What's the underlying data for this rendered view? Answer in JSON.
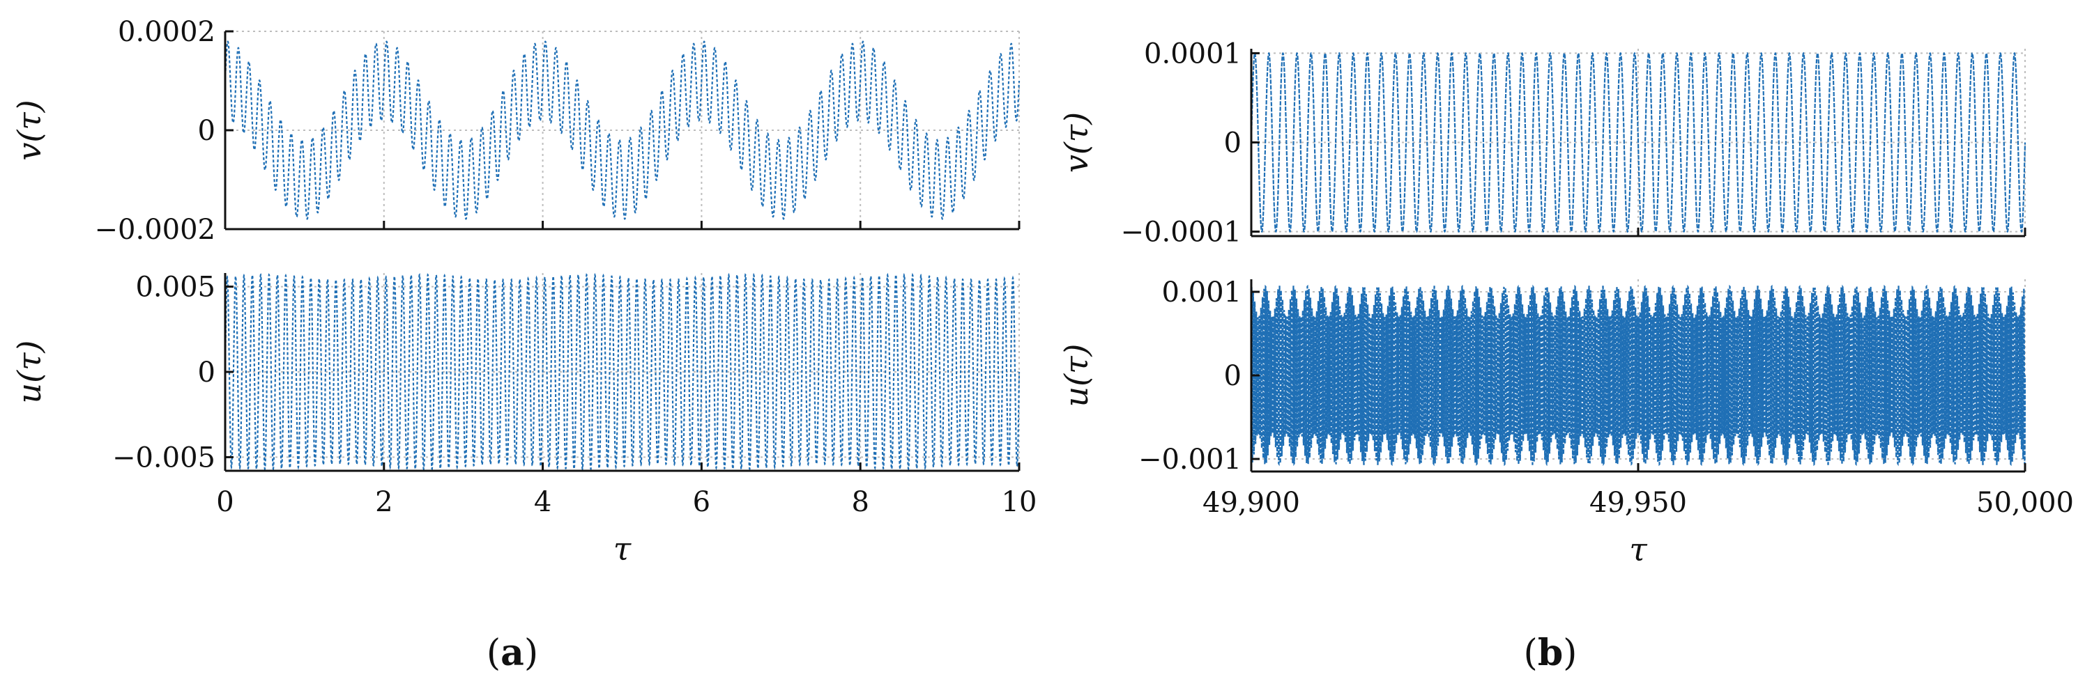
{
  "series_color": "#1f6fb5",
  "chart_data": [
    {
      "panel": "a",
      "type": "line",
      "row": "top",
      "ylabel_main": "v",
      "ylabel_arg": "τ",
      "xlim": [
        0,
        10
      ],
      "ylim": [
        -0.0002,
        0.0002
      ],
      "yticks": [
        "−0.0002",
        "0",
        "0.0002"
      ],
      "ytick_values": [
        -0.0002,
        0,
        0.0002
      ],
      "xtick_values": [
        0,
        2,
        4,
        6,
        8,
        10
      ],
      "xticks": [],
      "grid": true,
      "signal": {
        "slow_amp": 0.0001,
        "slow_period": 2,
        "slow_phase": "cos",
        "fast_amp": 8e-05,
        "fast_cycles_per_unit": 7.5
      }
    },
    {
      "panel": "a",
      "type": "line",
      "row": "bottom",
      "ylabel_main": "u",
      "ylabel_arg": "τ",
      "xlabel": "τ",
      "xlim": [
        0,
        10
      ],
      "ylim": [
        -0.0058,
        0.0058
      ],
      "yticks": [
        "−0.005",
        "0",
        "0.005"
      ],
      "ytick_values": [
        -0.005,
        0,
        0.005
      ],
      "xtick_values": [
        0,
        2,
        4,
        6,
        8,
        10
      ],
      "xticks": [
        "0",
        "2",
        "4",
        "6",
        "8",
        "10"
      ],
      "grid": true,
      "signal": {
        "amp": 0.0057,
        "amp_mod": 0.0003,
        "mod_period": 2,
        "fast_cycles_per_unit": 9.5
      }
    },
    {
      "panel": "b",
      "type": "line",
      "row": "top",
      "ylabel_main": "v",
      "ylabel_arg": "τ",
      "xlim": [
        49900,
        50000
      ],
      "ylim": [
        -0.000105,
        0.000105
      ],
      "yticks": [
        "−0.0001",
        "0",
        "0.0001"
      ],
      "ytick_values": [
        -0.0001,
        0,
        0.0001
      ],
      "xtick_values": [
        49900,
        49950,
        50000
      ],
      "xticks": [],
      "grid": true,
      "signal": {
        "amp": 0.0001,
        "cycles_per_unit": 0.55
      }
    },
    {
      "panel": "b",
      "type": "line",
      "row": "bottom",
      "ylabel_main": "u",
      "ylabel_arg": "τ",
      "xlabel": "τ",
      "xlim": [
        49900,
        50000
      ],
      "ylim": [
        -0.00115,
        0.00115
      ],
      "yticks": [
        "−0.001",
        "0",
        "0.001"
      ],
      "ytick_values": [
        -0.001,
        0,
        0.001
      ],
      "xtick_values": [
        49900,
        49950,
        50000
      ],
      "xticks": [
        "49,900",
        "49,950",
        "50,000"
      ],
      "grid": true,
      "signal": {
        "amp_max": 0.00108,
        "amp_min": 0.0007,
        "env_cycles_per_unit": 0.55,
        "fast_cycles_per_unit": 5
      }
    }
  ],
  "panel_labels": {
    "a": "(a)",
    "b": "(b)"
  }
}
